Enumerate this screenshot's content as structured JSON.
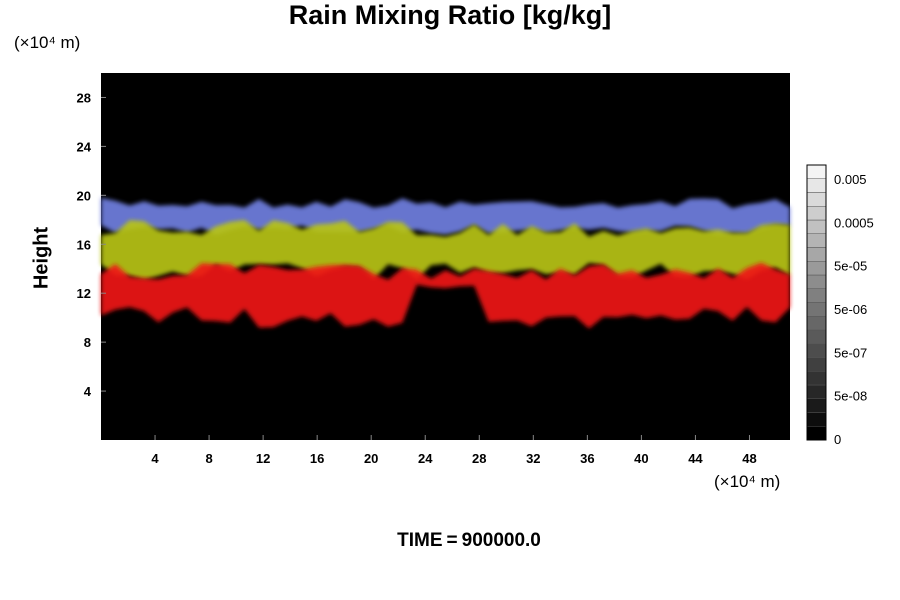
{
  "title": "Rain Mixing Ratio [kg/kg]",
  "y_unit": "(×10⁴ m)",
  "x_unit": "(×10⁴ m)",
  "time_label": "TIME",
  "time_value": "900000.0",
  "chart_data": {
    "type": "heatmap",
    "title": "Rain Mixing Ratio [kg/kg]",
    "xlabel": "",
    "ylabel": "Height",
    "xlim": [
      0,
      51
    ],
    "ylim": [
      0,
      30
    ],
    "x_ticks": [
      4,
      8,
      12,
      16,
      20,
      24,
      28,
      32,
      36,
      40,
      44,
      48
    ],
    "y_ticks": [
      4,
      8,
      12,
      16,
      20,
      24,
      28
    ],
    "background": "#000000",
    "layers": [
      {
        "color": "#6f7fe0",
        "y_range": [
          17,
          19.5
        ],
        "extent": [
          0,
          51
        ]
      },
      {
        "color": "#b8c412",
        "y_range": [
          13.5,
          17.5
        ],
        "extent": [
          0,
          51
        ]
      },
      {
        "color": "#ef1414",
        "y_range": [
          10,
          14
        ],
        "extent": [
          0,
          51
        ]
      }
    ],
    "colorbar": {
      "labels": [
        "0.005",
        "0.0005",
        "5e-05",
        "5e-06",
        "5e-07",
        "5e-08",
        "0"
      ],
      "min_color": "#000000",
      "max_color": "#f4f4f4",
      "steps": 20
    }
  }
}
